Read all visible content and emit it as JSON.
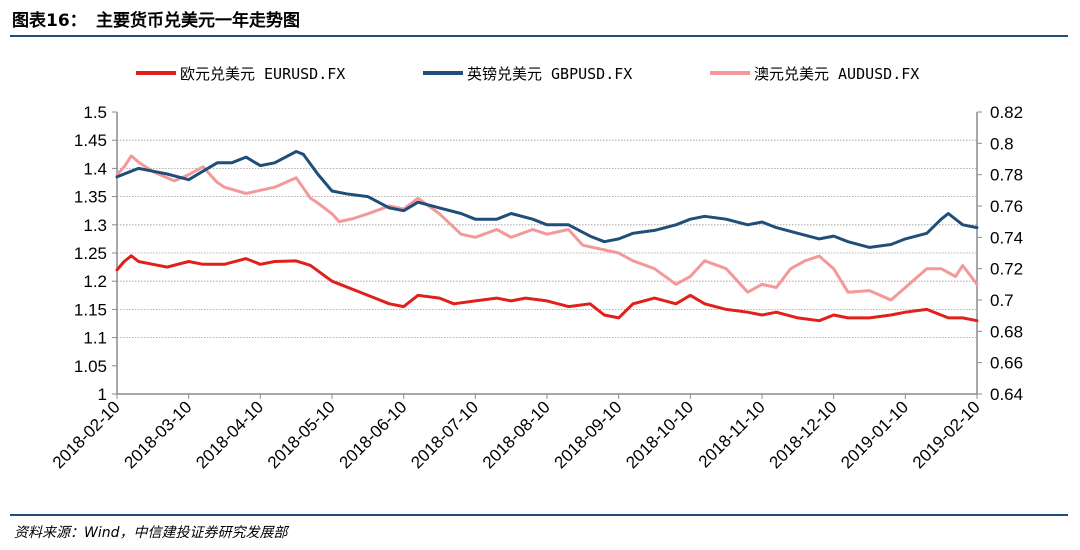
{
  "header": {
    "figure_number": "图表16：",
    "title": "主要货币兑美元一年走势图"
  },
  "source": "资料来源：Wind，中信建投证券研究发展部",
  "colors": {
    "rule": "#1f4e79",
    "eur": "#e0201b",
    "gbp": "#1f4e79",
    "aud": "#f3999b"
  },
  "chart_data": {
    "type": "line",
    "title": "主要货币兑美元一年走势图",
    "x_tick_labels": [
      "2018-02-10",
      "2018-03-10",
      "2018-04-10",
      "2018-05-10",
      "2018-06-10",
      "2018-07-10",
      "2018-08-10",
      "2018-09-10",
      "2018-10-10",
      "2018-11-10",
      "2018-12-10",
      "2019-01-10",
      "2019-02-10"
    ],
    "x_unit": "months since 2018-02-10",
    "left_axis": {
      "ylim": [
        1,
        1.5
      ],
      "ticks": [
        "1",
        "1.05",
        "1.1",
        "1.15",
        "1.2",
        "1.25",
        "1.3",
        "1.35",
        "1.4",
        "1.45",
        "1.5"
      ]
    },
    "right_axis": {
      "ylim": [
        0.64,
        0.82
      ],
      "ticks": [
        "0.64",
        "0.66",
        "0.68",
        "0.7",
        "0.72",
        "0.74",
        "0.76",
        "0.78",
        "0.8",
        "0.82"
      ]
    },
    "gridlines_left": [
      1.1,
      1.15,
      1.2,
      1.25,
      1.3,
      1.35,
      1.4,
      1.45
    ],
    "legend_position": "top",
    "series": [
      {
        "name": "欧元兑美元 EURUSD.FX",
        "axis": "left",
        "x": [
          0,
          0.1,
          0.2,
          0.3,
          0.5,
          0.7,
          1.0,
          1.2,
          1.5,
          1.8,
          2.0,
          2.2,
          2.5,
          2.7,
          3.0,
          3.2,
          3.4,
          3.6,
          3.8,
          4.0,
          4.2,
          4.5,
          4.7,
          5.0,
          5.3,
          5.5,
          5.7,
          6.0,
          6.3,
          6.6,
          6.8,
          7.0,
          7.2,
          7.5,
          7.8,
          8.0,
          8.2,
          8.5,
          8.8,
          9.0,
          9.2,
          9.5,
          9.8,
          10.0,
          10.2,
          10.5,
          10.8,
          11.0,
          11.3,
          11.6,
          11.8,
          12.0
        ],
        "values": [
          1.22,
          1.235,
          1.245,
          1.235,
          1.23,
          1.225,
          1.235,
          1.23,
          1.23,
          1.24,
          1.23,
          1.235,
          1.236,
          1.228,
          1.2,
          1.19,
          1.18,
          1.17,
          1.16,
          1.155,
          1.175,
          1.17,
          1.16,
          1.165,
          1.17,
          1.165,
          1.17,
          1.165,
          1.155,
          1.16,
          1.14,
          1.135,
          1.16,
          1.17,
          1.16,
          1.175,
          1.16,
          1.15,
          1.145,
          1.14,
          1.145,
          1.135,
          1.13,
          1.14,
          1.135,
          1.135,
          1.14,
          1.145,
          1.15,
          1.135,
          1.135,
          1.13
        ]
      },
      {
        "name": "英镑兑美元 GBPUSD.FX",
        "axis": "left",
        "x": [
          0,
          0.1,
          0.3,
          0.5,
          0.7,
          1.0,
          1.2,
          1.4,
          1.6,
          1.8,
          2.0,
          2.2,
          2.5,
          2.6,
          2.8,
          3.0,
          3.2,
          3.5,
          3.8,
          4.0,
          4.2,
          4.5,
          4.8,
          5.0,
          5.3,
          5.5,
          5.8,
          6.0,
          6.3,
          6.6,
          6.8,
          7.0,
          7.2,
          7.5,
          7.8,
          8.0,
          8.2,
          8.5,
          8.8,
          9.0,
          9.2,
          9.5,
          9.8,
          10.0,
          10.2,
          10.5,
          10.8,
          11.0,
          11.3,
          11.5,
          11.6,
          11.8,
          12.0
        ],
        "values": [
          1.385,
          1.39,
          1.4,
          1.395,
          1.39,
          1.38,
          1.395,
          1.41,
          1.41,
          1.42,
          1.405,
          1.41,
          1.43,
          1.425,
          1.39,
          1.36,
          1.355,
          1.35,
          1.33,
          1.325,
          1.34,
          1.33,
          1.32,
          1.31,
          1.31,
          1.32,
          1.31,
          1.3,
          1.3,
          1.28,
          1.27,
          1.275,
          1.285,
          1.29,
          1.3,
          1.31,
          1.315,
          1.31,
          1.3,
          1.305,
          1.295,
          1.285,
          1.275,
          1.28,
          1.27,
          1.26,
          1.265,
          1.275,
          1.285,
          1.31,
          1.32,
          1.3,
          1.295
        ]
      },
      {
        "name": "澳元兑美元 AUDUSD.FX",
        "axis": "right",
        "x": [
          0,
          0.1,
          0.2,
          0.3,
          0.5,
          0.6,
          0.8,
          1.0,
          1.2,
          1.4,
          1.5,
          1.8,
          2.0,
          2.2,
          2.5,
          2.7,
          2.8,
          3.0,
          3.1,
          3.3,
          3.5,
          3.8,
          4.0,
          4.2,
          4.5,
          4.8,
          5.0,
          5.3,
          5.5,
          5.8,
          6.0,
          6.3,
          6.5,
          6.8,
          7.0,
          7.2,
          7.5,
          7.8,
          8.0,
          8.2,
          8.5,
          8.8,
          9.0,
          9.2,
          9.4,
          9.6,
          9.8,
          10.0,
          10.2,
          10.5,
          10.8,
          11.0,
          11.3,
          11.5,
          11.7,
          11.8,
          12.0
        ],
        "values": [
          0.78,
          0.785,
          0.792,
          0.788,
          0.782,
          0.78,
          0.776,
          0.78,
          0.785,
          0.775,
          0.772,
          0.768,
          0.77,
          0.772,
          0.778,
          0.765,
          0.762,
          0.755,
          0.75,
          0.752,
          0.755,
          0.76,
          0.758,
          0.765,
          0.755,
          0.742,
          0.74,
          0.745,
          0.74,
          0.745,
          0.742,
          0.745,
          0.735,
          0.732,
          0.73,
          0.725,
          0.72,
          0.71,
          0.715,
          0.725,
          0.72,
          0.705,
          0.71,
          0.708,
          0.72,
          0.725,
          0.728,
          0.72,
          0.705,
          0.706,
          0.7,
          0.708,
          0.72,
          0.72,
          0.715,
          0.722,
          0.71
        ]
      }
    ]
  }
}
